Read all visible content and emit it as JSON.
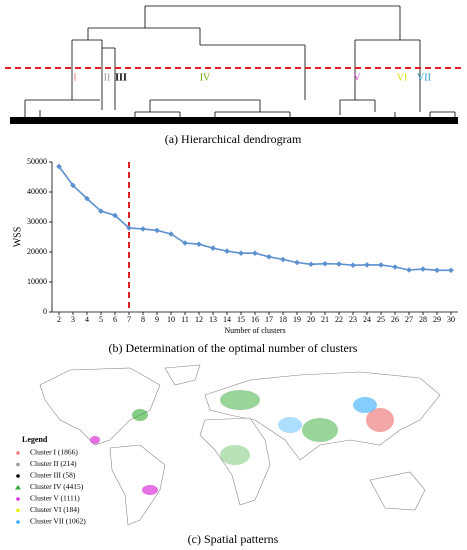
{
  "chart_data": [
    {
      "type": "dendrogram",
      "caption": "(a) Hierarchical dendrogram",
      "clusters": [
        {
          "label": "I",
          "color": "#f08080"
        },
        {
          "label": "II",
          "color": "#999999"
        },
        {
          "label": "III",
          "color": "#000000"
        },
        {
          "label": "IV",
          "color": "#66aa00"
        },
        {
          "label": "V",
          "color": "#cc44cc"
        },
        {
          "label": "VI",
          "color": "#dddd00"
        },
        {
          "label": "VII",
          "color": "#2299cc"
        }
      ],
      "cut_color": "#e02020"
    },
    {
      "type": "line",
      "caption": "(b) Determination of the optimal number of clusters",
      "x_label": "Number of clusters",
      "y_label": "WSS",
      "x": [
        2,
        3,
        4,
        5,
        6,
        7,
        8,
        9,
        10,
        11,
        12,
        13,
        14,
        15,
        16,
        17,
        18,
        19,
        20,
        21,
        22,
        23,
        24,
        25,
        26,
        27,
        28,
        29,
        30
      ],
      "values": [
        48500,
        42200,
        37800,
        33600,
        32200,
        28000,
        27700,
        27200,
        26000,
        23000,
        22600,
        21300,
        20300,
        19600,
        19600,
        18400,
        17500,
        16500,
        15900,
        16100,
        16000,
        15600,
        15700,
        15700,
        15000,
        14000,
        14300,
        13900,
        13900
      ],
      "color": "#5b8fd0",
      "xlim": [
        1.5,
        30.5
      ],
      "xticks": [
        2,
        3,
        4,
        5,
        6,
        7,
        8,
        9,
        10,
        11,
        12,
        13,
        14,
        15,
        16,
        17,
        18,
        19,
        20,
        21,
        22,
        23,
        24,
        25,
        26,
        27,
        28,
        29,
        30
      ],
      "ylim": [
        0,
        50000
      ],
      "yticks": [
        0,
        10000,
        20000,
        30000,
        40000,
        50000
      ],
      "vline": 7,
      "vline_color": "#e02020"
    },
    {
      "type": "map",
      "caption": "(c) Spatial patterns",
      "legend_title": "Legend",
      "legend": [
        {
          "label": "Cluster I (1866)",
          "color": "#f08080"
        },
        {
          "label": "Cluster II (214)",
          "color": "#999999"
        },
        {
          "label": "Cluster III (58)",
          "color": "#000000"
        },
        {
          "label": "Cluster IV (4415)",
          "color": "#33aa33"
        },
        {
          "label": "Cluster V (1111)",
          "color": "#dd33dd"
        },
        {
          "label": "Cluster VI (184)",
          "color": "#eeee00"
        },
        {
          "label": "Cluster VII (1062)",
          "color": "#33aaff"
        }
      ]
    }
  ]
}
